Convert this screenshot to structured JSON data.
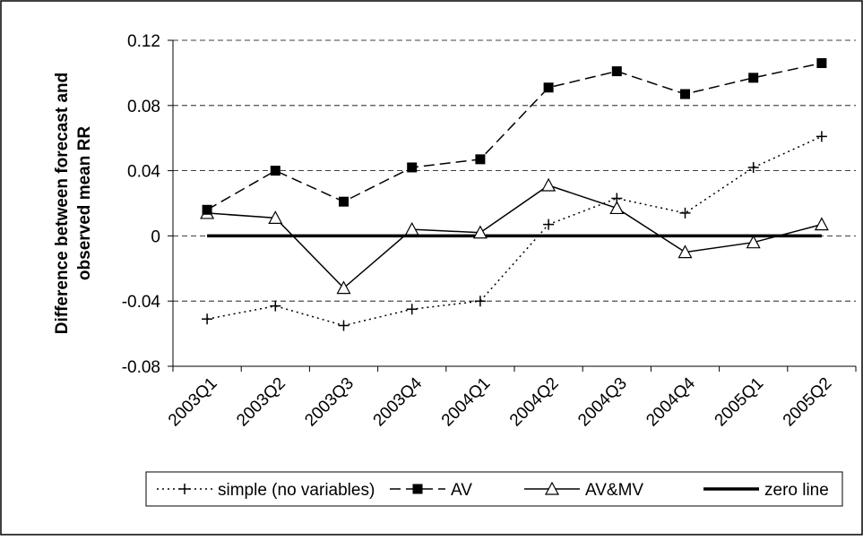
{
  "chart_data": {
    "type": "line",
    "ylabel": [
      "Difference between forecast and",
      "observed mean RR"
    ],
    "categories": [
      "2003Q1",
      "2003Q2",
      "2003Q3",
      "2003Q4",
      "2004Q1",
      "2004Q2",
      "2004Q3",
      "2004Q4",
      "2005Q1",
      "2005Q2"
    ],
    "series": [
      {
        "name": "simple (no variables)",
        "color": "#000000",
        "line_style": "dotted",
        "marker": "plus",
        "values": [
          -0.051,
          -0.043,
          -0.055,
          -0.045,
          -0.04,
          0.007,
          0.023,
          0.014,
          0.042,
          0.061
        ]
      },
      {
        "name": "AV",
        "color": "#000000",
        "line_style": "dashed",
        "marker": "square",
        "values": [
          0.016,
          0.04,
          0.021,
          0.042,
          0.047,
          0.091,
          0.101,
          0.087,
          0.097,
          0.106
        ]
      },
      {
        "name": "AV&MV",
        "color": "#000000",
        "line_style": "solid",
        "marker": "triangle",
        "values": [
          0.014,
          0.011,
          -0.032,
          0.004,
          0.002,
          0.031,
          0.017,
          -0.01,
          -0.004,
          0.007
        ]
      },
      {
        "name": "zero line",
        "color": "#000000",
        "line_style": "thick",
        "marker": "none",
        "values": [
          0,
          0,
          0,
          0,
          0,
          0,
          0,
          0,
          0,
          0
        ]
      }
    ],
    "ylim": [
      -0.08,
      0.12
    ],
    "yticks": [
      -0.08,
      -0.04,
      0,
      0.04,
      0.08,
      0.12
    ],
    "grid": true,
    "legend": "bottom"
  }
}
